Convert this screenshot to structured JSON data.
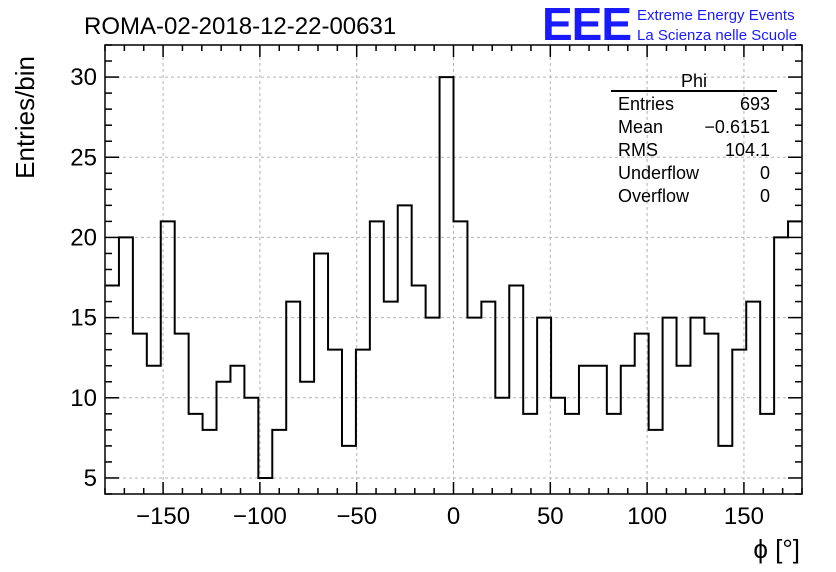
{
  "chart_data": {
    "type": "histogram",
    "title": "ROMA-02-2018-12-22-00631",
    "xlabel": "ϕ [°]",
    "ylabel": "Entries/bin",
    "xlim": [
      -180,
      180
    ],
    "ylim": [
      4,
      32
    ],
    "grid": true,
    "xticks": [
      -150,
      -100,
      -50,
      0,
      50,
      100,
      150
    ],
    "xtick_labels": [
      "−150",
      "−100",
      "−50",
      "0",
      "50",
      "100",
      "150"
    ],
    "yticks": [
      5,
      10,
      15,
      20,
      25,
      30
    ],
    "ytick_labels": [
      "5",
      "10",
      "15",
      "20",
      "25",
      "30"
    ],
    "bin_width": 7.2,
    "bin_edges_start": -180,
    "values": [
      17,
      20,
      14,
      12,
      21,
      14,
      9,
      8,
      11,
      12,
      10,
      5,
      8,
      16,
      11,
      19,
      13,
      7,
      13,
      21,
      16,
      22,
      17,
      15,
      30,
      21,
      15,
      16,
      10,
      17,
      9,
      15,
      10,
      9,
      12,
      12,
      9,
      12,
      14,
      8,
      15,
      12,
      15,
      14,
      7,
      13,
      16,
      9,
      20,
      21
    ],
    "stats": {
      "name": "Phi",
      "rows": [
        {
          "label": "Entries",
          "value": "693"
        },
        {
          "label": "Mean",
          "value": "−0.6151"
        },
        {
          "label": "RMS",
          "value": "104.1"
        },
        {
          "label": "Underflow",
          "value": "0"
        },
        {
          "label": "Overflow",
          "value": "0"
        }
      ]
    }
  },
  "logo": {
    "mark": "EEE",
    "line1": "Extreme Energy Events",
    "line2": "La Scienza nelle Scuole",
    "color": "#1a1aff"
  },
  "colors": {
    "line": "#000000",
    "grid": "#b3b3b3",
    "logo": "#1a1aff"
  }
}
